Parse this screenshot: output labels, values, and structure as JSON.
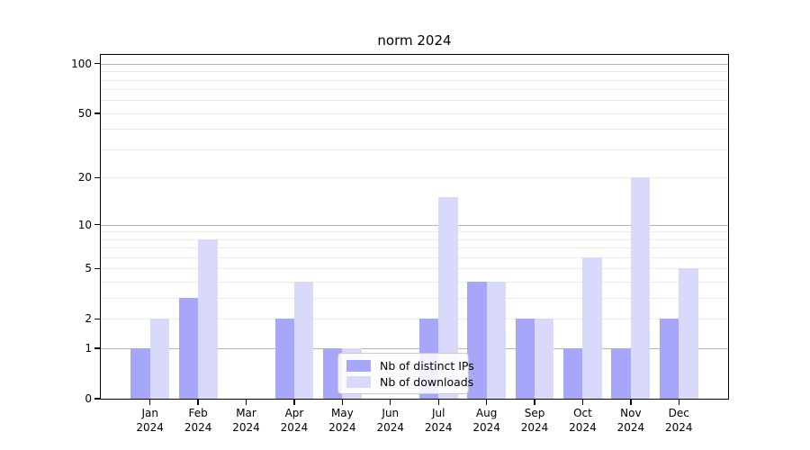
{
  "chart_data": {
    "type": "bar",
    "title": "norm 2024",
    "categories": [
      "Jan 2024",
      "Feb 2024",
      "Mar 2024",
      "Apr 2024",
      "May 2024",
      "Jun 2024",
      "Jul 2024",
      "Aug 2024",
      "Sep 2024",
      "Oct 2024",
      "Nov 2024",
      "Dec 2024"
    ],
    "series": [
      {
        "name": "Nb of distinct IPs",
        "color": "#a6a6fa",
        "values": [
          1,
          3,
          0,
          2,
          1,
          0,
          2,
          4,
          2,
          1,
          1,
          2
        ]
      },
      {
        "name": "Nb of downloads",
        "color": "#d9d9fc",
        "values": [
          2,
          8,
          0,
          4,
          1,
          0,
          15,
          4,
          2,
          6,
          20,
          5
        ]
      }
    ],
    "xlabel": "",
    "ylabel": "",
    "yscale": "log1p",
    "ylim": [
      0,
      113
    ],
    "yticks": [
      0,
      1,
      2,
      5,
      10,
      20,
      50,
      100
    ],
    "ytick_labels": [
      "0",
      "1",
      "2",
      "5",
      "10",
      "20",
      "50",
      "100"
    ],
    "grid": {
      "on": true,
      "major": [
        1,
        10,
        100
      ],
      "minor": [
        2,
        3,
        4,
        5,
        6,
        7,
        8,
        9,
        20,
        30,
        40,
        50,
        60,
        70,
        80,
        90
      ]
    },
    "legend": {
      "position": "lower center, inside axes"
    }
  },
  "colors": {
    "background": "#ffffff",
    "grid_major": "#b3b3b3",
    "grid_minor": "#ebebeb",
    "spine": "#000000",
    "legend_border": "#c9c9c9"
  }
}
